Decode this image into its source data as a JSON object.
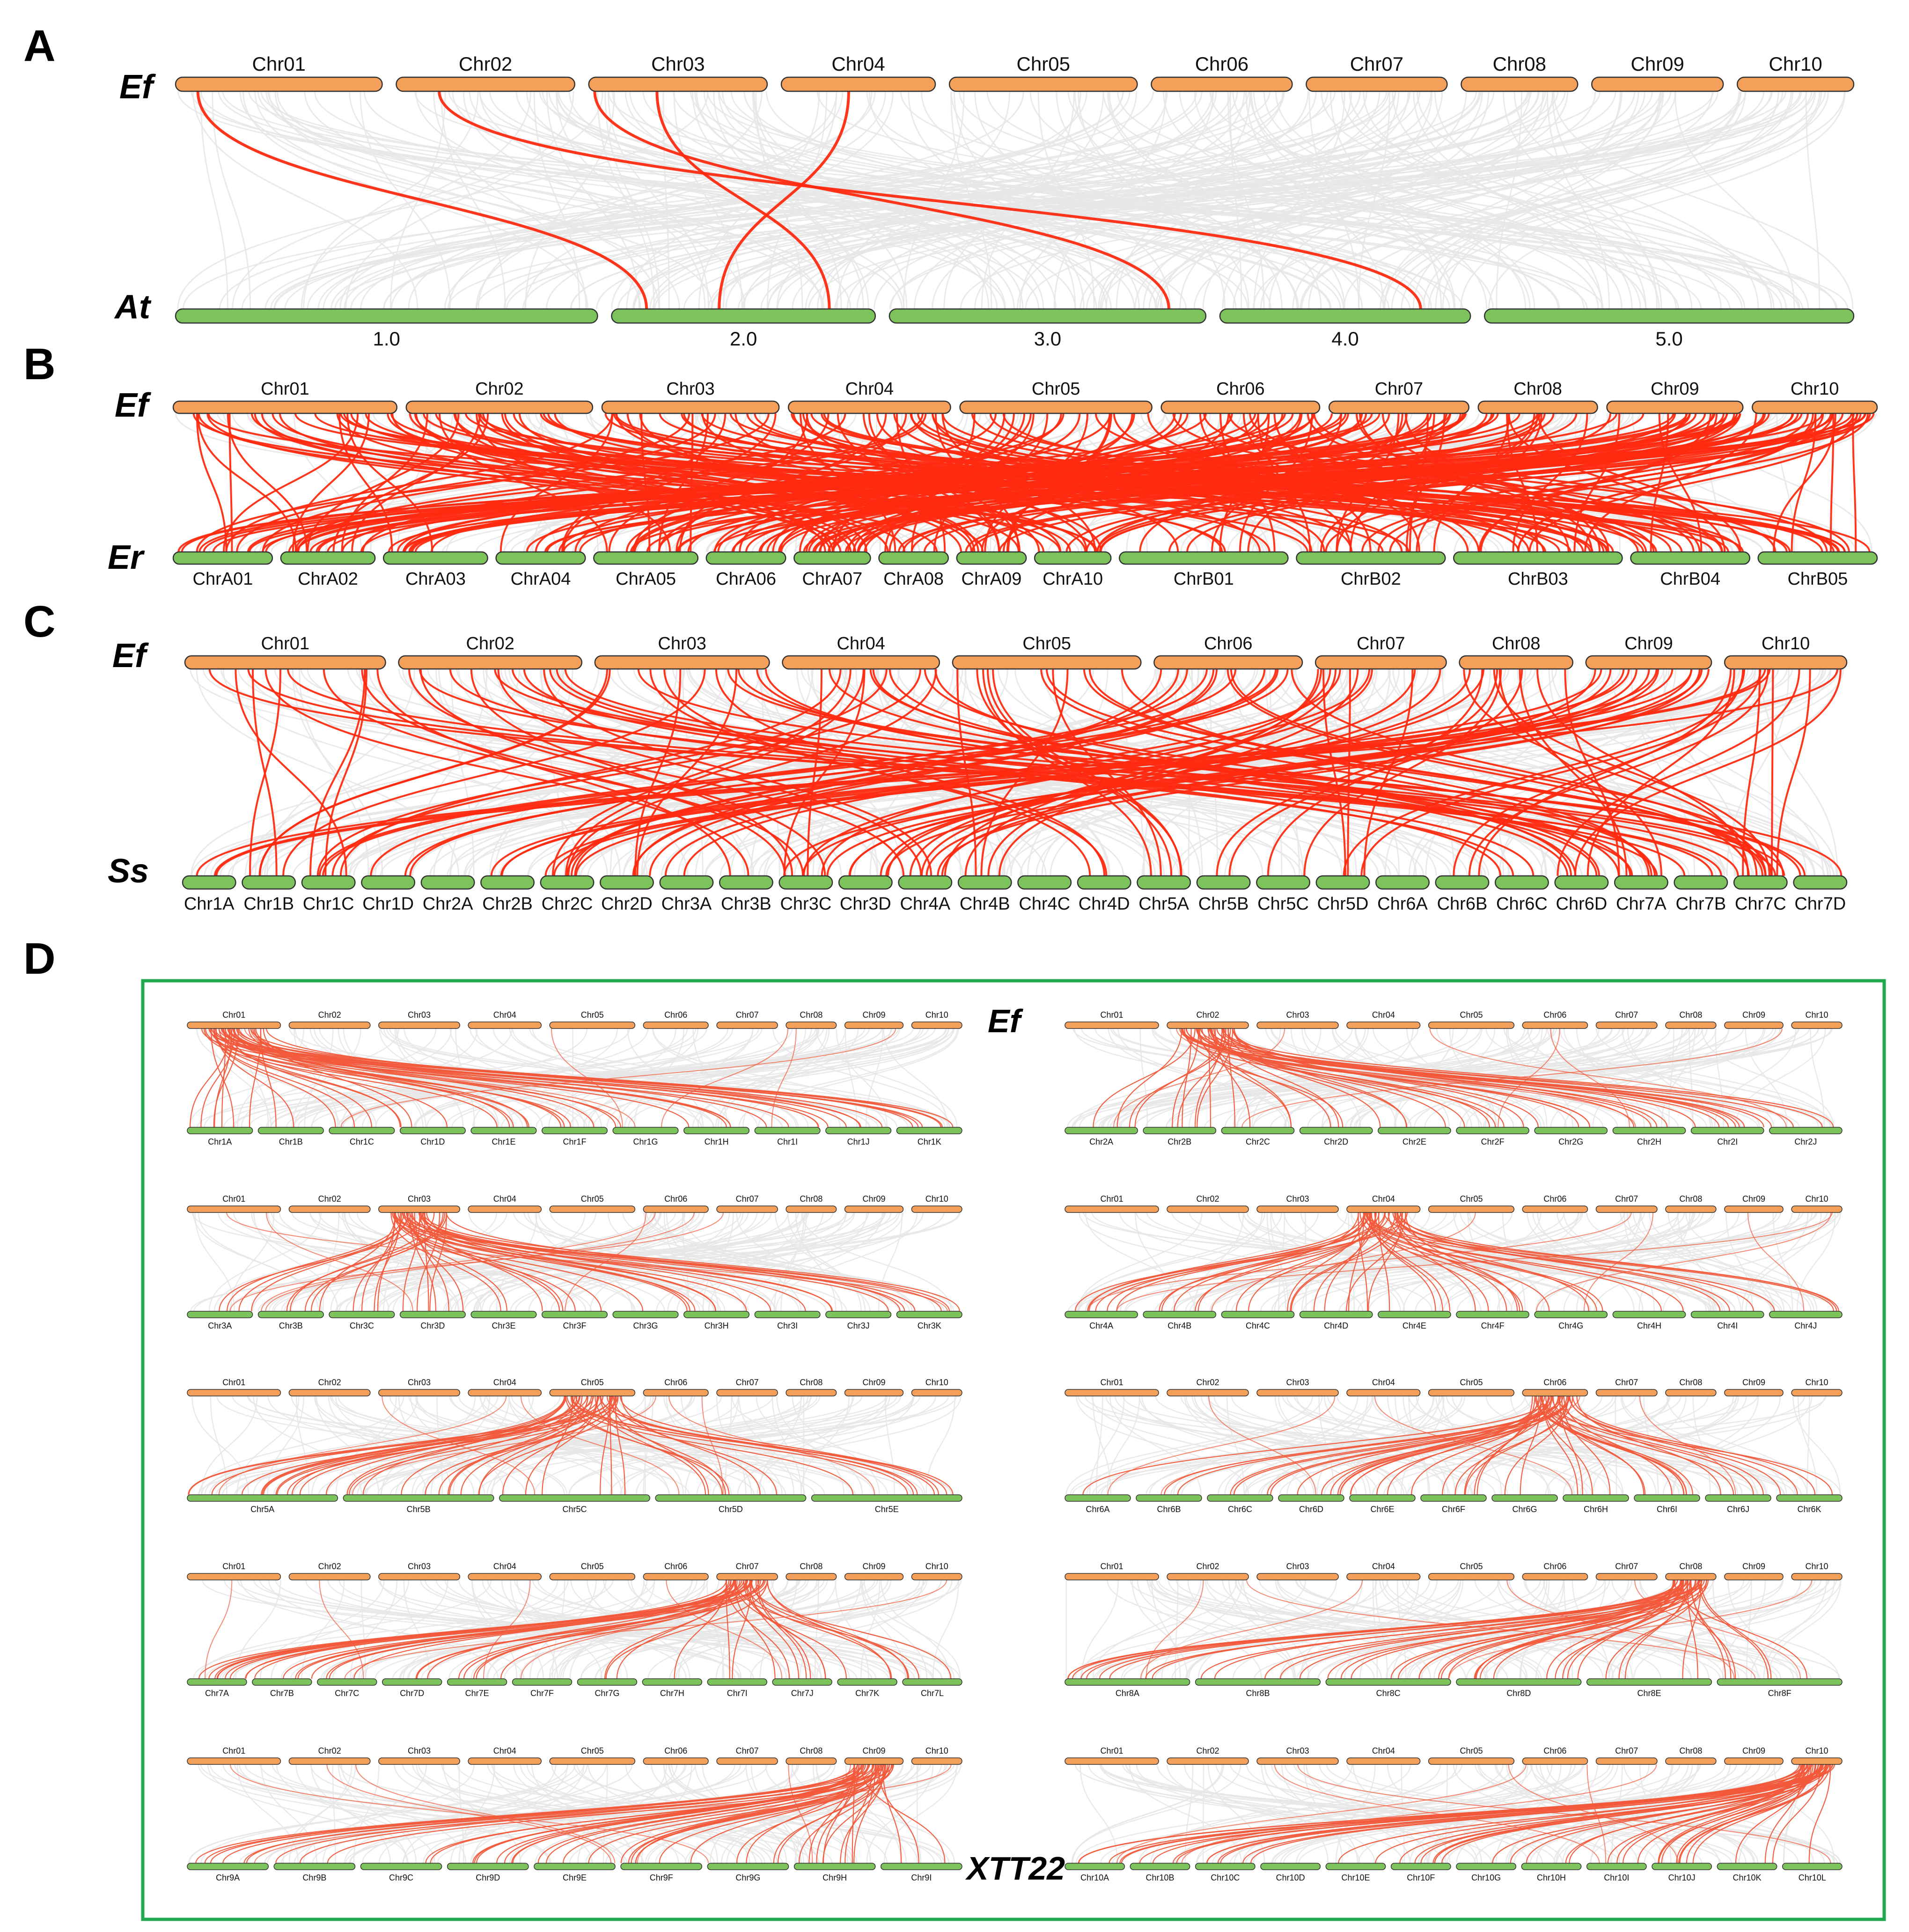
{
  "colors": {
    "ef_bar": "#F5A05A",
    "target_bar": "#7DC35B",
    "bar_stroke": "#333333",
    "background_link": "#E6E6E6",
    "highlight_link": "#FF2A10",
    "highlight_link_soft": "#F2593A",
    "frame": "#1FA84D"
  },
  "panels": {
    "A": {
      "letter": "A",
      "top_species": "Ef",
      "bottom_species": "At",
      "top_chromosomes": [
        "Chr01",
        "Chr02",
        "Chr03",
        "Chr04",
        "Chr05",
        "Chr06",
        "Chr07",
        "Chr08",
        "Chr09",
        "Chr10"
      ],
      "bottom_chromosomes": [
        "1.0",
        "2.0",
        "3.0",
        "4.0",
        "5.0"
      ],
      "highlighted_links": [
        [
          "Chr01",
          "2.0"
        ],
        [
          "Chr02",
          "4.0"
        ],
        [
          "Chr03",
          "2.0"
        ],
        [
          "Chr03",
          "3.0"
        ],
        [
          "Chr04",
          "2.0"
        ]
      ]
    },
    "B": {
      "letter": "B",
      "top_species": "Ef",
      "bottom_species": "Er",
      "top_chromosomes": [
        "Chr01",
        "Chr02",
        "Chr03",
        "Chr04",
        "Chr05",
        "Chr06",
        "Chr07",
        "Chr08",
        "Chr09",
        "Chr10"
      ],
      "bottom_chromosomes": [
        "ChrA01",
        "ChrA02",
        "ChrA03",
        "ChrA04",
        "ChrA05",
        "ChrA06",
        "ChrA07",
        "ChrA08",
        "ChrA09",
        "ChrA10",
        "ChrB01",
        "ChrB02",
        "ChrB03",
        "ChrB04",
        "ChrB05"
      ]
    },
    "C": {
      "letter": "C",
      "top_species": "Ef",
      "bottom_species": "Ss",
      "top_chromosomes": [
        "Chr01",
        "Chr02",
        "Chr03",
        "Chr04",
        "Chr05",
        "Chr06",
        "Chr07",
        "Chr08",
        "Chr09",
        "Chr10"
      ],
      "bottom_chromosomes": [
        "Chr1A",
        "Chr1B",
        "Chr1C",
        "Chr1D",
        "Chr2A",
        "Chr2B",
        "Chr2C",
        "Chr2D",
        "Chr3A",
        "Chr3B",
        "Chr3C",
        "Chr3D",
        "Chr4A",
        "Chr4B",
        "Chr4C",
        "Chr4D",
        "Chr5A",
        "Chr5B",
        "Chr5C",
        "Chr5D",
        "Chr6A",
        "Chr6B",
        "Chr6C",
        "Chr6D",
        "Chr7A",
        "Chr7B",
        "Chr7C",
        "Chr7D"
      ]
    },
    "D": {
      "letter": "D",
      "top_species": "Ef",
      "bottom_species": "XTT22",
      "ef_chromosomes": [
        "Chr01",
        "Chr02",
        "Chr03",
        "Chr04",
        "Chr05",
        "Chr06",
        "Chr07",
        "Chr08",
        "Chr09",
        "Chr10"
      ],
      "subplots": [
        {
          "focus": "Chr01",
          "targets": [
            "Chr1A",
            "Chr1B",
            "Chr1C",
            "Chr1D",
            "Chr1E",
            "Chr1F",
            "Chr1G",
            "Chr1H",
            "Chr1I",
            "Chr1J",
            "Chr1K"
          ]
        },
        {
          "focus": "Chr02",
          "targets": [
            "Chr2A",
            "Chr2B",
            "Chr2C",
            "Chr2D",
            "Chr2E",
            "Chr2F",
            "Chr2G",
            "Chr2H",
            "Chr2I",
            "Chr2J"
          ]
        },
        {
          "focus": "Chr03",
          "targets": [
            "Chr3A",
            "Chr3B",
            "Chr3C",
            "Chr3D",
            "Chr3E",
            "Chr3F",
            "Chr3G",
            "Chr3H",
            "Chr3I",
            "Chr3J",
            "Chr3K"
          ]
        },
        {
          "focus": "Chr04",
          "targets": [
            "Chr4A",
            "Chr4B",
            "Chr4C",
            "Chr4D",
            "Chr4E",
            "Chr4F",
            "Chr4G",
            "Chr4H",
            "Chr4I",
            "Chr4J"
          ]
        },
        {
          "focus": "Chr05",
          "targets": [
            "Chr5A",
            "Chr5B",
            "Chr5C",
            "Chr5D",
            "Chr5E"
          ]
        },
        {
          "focus": "Chr06",
          "targets": [
            "Chr6A",
            "Chr6B",
            "Chr6C",
            "Chr6D",
            "Chr6E",
            "Chr6F",
            "Chr6G",
            "Chr6H",
            "Chr6I",
            "Chr6J",
            "Chr6K"
          ]
        },
        {
          "focus": "Chr07",
          "targets": [
            "Chr7A",
            "Chr7B",
            "Chr7C",
            "Chr7D",
            "Chr7E",
            "Chr7F",
            "Chr7G",
            "Chr7H",
            "Chr7I",
            "Chr7J",
            "Chr7K",
            "Chr7L"
          ]
        },
        {
          "focus": "Chr08",
          "targets": [
            "Chr8A",
            "Chr8B",
            "Chr8C",
            "Chr8D",
            "Chr8E",
            "Chr8F"
          ]
        },
        {
          "focus": "Chr09",
          "targets": [
            "Chr9A",
            "Chr9B",
            "Chr9C",
            "Chr9D",
            "Chr9E",
            "Chr9F",
            "Chr9G",
            "Chr9H",
            "Chr9I"
          ]
        },
        {
          "focus": "Chr10",
          "targets": [
            "Chr10A",
            "Chr10B",
            "Chr10C",
            "Chr10D",
            "Chr10E",
            "Chr10F",
            "Chr10G",
            "Chr10H",
            "Chr10I",
            "Chr10J",
            "Chr10K",
            "Chr10L"
          ]
        }
      ]
    }
  }
}
